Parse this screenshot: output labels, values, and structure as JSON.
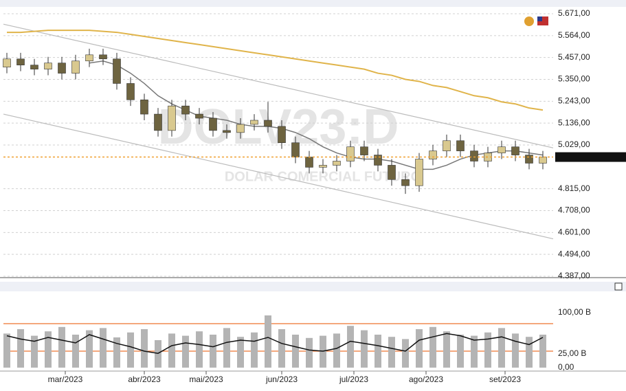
{
  "chart_data": [
    {
      "type": "candlestick",
      "annotations": [
        "DOLV23:D",
        "DOLAR COMERCIAL FUTURO"
      ],
      "xlim": [
        -0.25,
        39.75
      ],
      "ylim": [
        4.387,
        5.671
      ],
      "yticks": [
        {
          "value": 5.671,
          "label": "5.671,00"
        },
        {
          "value": 5.564,
          "label": "5.564,00"
        },
        {
          "value": 5.457,
          "label": "5.457,00"
        },
        {
          "value": 5.35,
          "label": "5.350,00"
        },
        {
          "value": 5.243,
          "label": "5.243,00"
        },
        {
          "value": 5.136,
          "label": "5.136,00"
        },
        {
          "value": 5.029,
          "label": "5.029,00"
        },
        {
          "value": 4.815,
          "label": "4.815,00"
        },
        {
          "value": 4.708,
          "label": "4.708,00"
        },
        {
          "value": 4.601,
          "label": "4.601,00"
        },
        {
          "value": 4.494,
          "label": "4.494,00"
        },
        {
          "value": 4.387,
          "label": "4.387,00"
        }
      ],
      "grid": true,
      "up_color": "#d9c98f",
      "down_color": "#6e6440",
      "wick_color": "#333333",
      "open": [
        5.41,
        5.45,
        5.42,
        5.4,
        5.43,
        5.38,
        5.44,
        5.47,
        5.45,
        5.33,
        5.25,
        5.18,
        5.1,
        5.22,
        5.18,
        5.16,
        5.1,
        5.09,
        5.13,
        5.15,
        5.12,
        5.04,
        4.97,
        4.92,
        4.93,
        4.95,
        5.02,
        4.98,
        4.93,
        4.86,
        4.83,
        4.96,
        5.0,
        5.05,
        5.0,
        4.95,
        4.99,
        5.02,
        4.98,
        4.94
      ],
      "high": [
        5.48,
        5.48,
        5.45,
        5.46,
        5.46,
        5.47,
        5.5,
        5.5,
        5.48,
        5.36,
        5.28,
        5.21,
        5.25,
        5.25,
        5.21,
        5.19,
        5.13,
        5.16,
        5.18,
        5.24,
        5.15,
        5.07,
        5.0,
        4.96,
        4.98,
        5.05,
        5.05,
        5.01,
        4.96,
        4.89,
        4.99,
        5.03,
        5.08,
        5.08,
        5.03,
        5.02,
        5.05,
        5.05,
        5.01,
        5.0
      ],
      "low": [
        5.38,
        5.39,
        5.37,
        5.37,
        5.35,
        5.35,
        5.41,
        5.42,
        5.3,
        5.22,
        5.15,
        5.07,
        5.07,
        5.15,
        5.13,
        5.07,
        5.06,
        5.06,
        5.1,
        5.09,
        5.01,
        4.94,
        4.89,
        4.89,
        4.9,
        4.92,
        4.95,
        4.9,
        4.83,
        4.79,
        4.8,
        4.93,
        4.97,
        4.97,
        4.92,
        4.92,
        4.96,
        4.95,
        4.91,
        4.91
      ],
      "close": [
        5.45,
        5.42,
        5.4,
        5.43,
        5.38,
        5.44,
        5.47,
        5.45,
        5.33,
        5.25,
        5.18,
        5.1,
        5.22,
        5.18,
        5.16,
        5.1,
        5.09,
        5.13,
        5.15,
        5.12,
        5.04,
        4.97,
        4.92,
        4.93,
        4.95,
        5.02,
        4.98,
        4.93,
        4.86,
        4.83,
        4.96,
        5.0,
        5.05,
        5.0,
        4.95,
        4.99,
        5.02,
        4.98,
        4.94,
        4.97
      ],
      "series": [
        {
          "color": "#777777",
          "values": [
            null,
            null,
            null,
            null,
            null,
            null,
            5.43,
            5.44,
            5.42,
            5.38,
            5.33,
            5.27,
            5.23,
            5.2,
            5.17,
            5.16,
            5.15,
            5.13,
            5.12,
            5.12,
            5.11,
            5.09,
            5.06,
            5.02,
            4.99,
            4.97,
            4.96,
            4.96,
            4.95,
            4.93,
            4.91,
            4.91,
            4.93,
            4.96,
            4.98,
            4.99,
            5.0,
            5.0,
            4.99,
            4.98
          ]
        },
        {
          "color": "#e0b44a",
          "values": [
            5.58,
            5.58,
            5.585,
            5.59,
            5.59,
            5.59,
            5.59,
            5.585,
            5.58,
            5.57,
            5.56,
            5.55,
            5.54,
            5.53,
            5.52,
            5.51,
            5.5,
            5.49,
            5.48,
            5.47,
            5.46,
            5.45,
            5.44,
            5.43,
            5.42,
            5.41,
            5.4,
            5.38,
            5.37,
            5.35,
            5.34,
            5.32,
            5.31,
            5.29,
            5.27,
            5.26,
            5.24,
            5.23,
            5.21,
            5.2
          ]
        }
      ],
      "trendlines": [
        {
          "x": [
            -0.25,
            39.75
          ],
          "y": [
            5.62,
            5.015
          ],
          "color": "#bbbbbb"
        },
        {
          "x": [
            -0.25,
            39.75
          ],
          "y": [
            5.18,
            4.57
          ],
          "color": "#bbbbbb"
        }
      ],
      "last_line_color": "#f0a030"
    },
    {
      "type": "bar",
      "xlim": [
        -0.25,
        39.75
      ],
      "ylim": [
        0,
        118.75
      ],
      "yticks": [
        {
          "value": 100,
          "label": "100,00 B"
        },
        {
          "value": 25,
          "label": "25,00 B"
        },
        {
          "value": 0,
          "label": "0,00"
        }
      ],
      "xticks": [
        {
          "value": 4.25,
          "label": "mar/2023"
        },
        {
          "value": 10,
          "label": "abr/2023"
        },
        {
          "value": 14.5,
          "label": "mai/2023"
        },
        {
          "value": 20,
          "label": "jun/2023"
        },
        {
          "value": 25.25,
          "label": "jul/2023"
        },
        {
          "value": 30.5,
          "label": "ago/2023"
        },
        {
          "value": 36.25,
          "label": "set/2023"
        }
      ],
      "color": "#b4b4b4",
      "values": [
        62,
        70,
        58,
        66,
        74,
        60,
        68,
        72,
        55,
        64,
        70,
        50,
        62,
        58,
        66,
        60,
        72,
        56,
        64,
        95,
        70,
        60,
        54,
        58,
        62,
        76,
        68,
        60,
        56,
        52,
        70,
        74,
        66,
        60,
        58,
        64,
        72,
        62,
        56,
        60
      ],
      "line": {
        "color": "#111111",
        "values": [
          58,
          52,
          48,
          55,
          50,
          45,
          60,
          52,
          44,
          38,
          30,
          26,
          40,
          45,
          42,
          38,
          46,
          50,
          48,
          55,
          44,
          38,
          32,
          30,
          35,
          48,
          44,
          40,
          35,
          30,
          50,
          56,
          62,
          58,
          50,
          52,
          56,
          48,
          42,
          55
        ]
      },
      "ref_lines": [
        80,
        30
      ],
      "ref_color": "#f08a50"
    }
  ]
}
